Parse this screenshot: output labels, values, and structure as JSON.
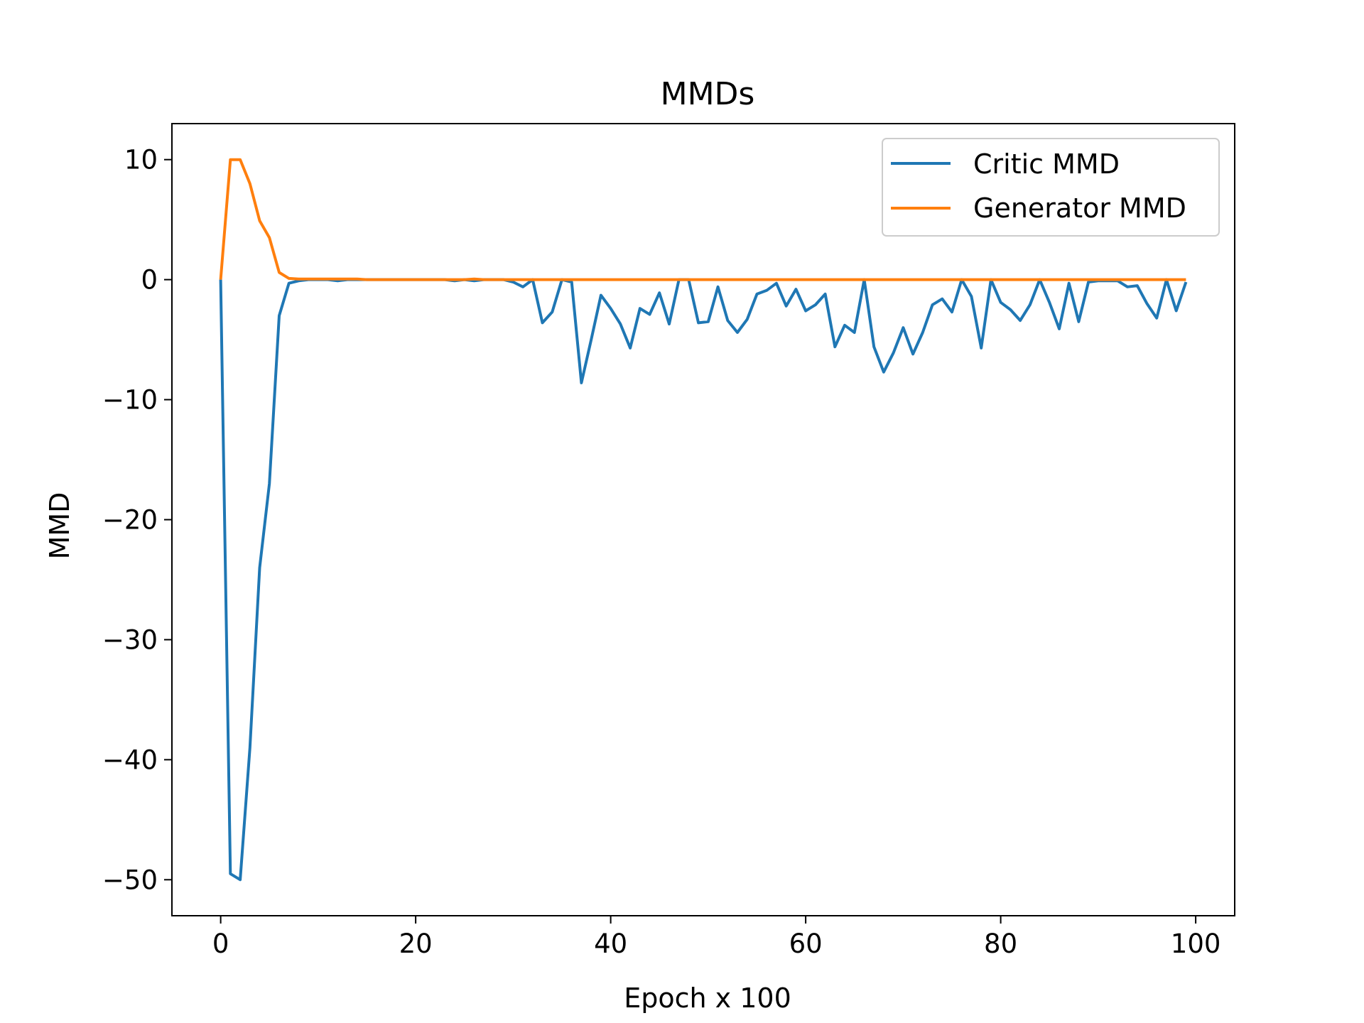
{
  "chart_data": {
    "type": "line",
    "title": "MMDs",
    "xlabel": "Epoch x 100",
    "ylabel": "MMD",
    "xlim": [
      -5,
      104
    ],
    "ylim": [
      -53,
      13
    ],
    "xticks": [
      0,
      20,
      40,
      60,
      80,
      100
    ],
    "xtick_labels": [
      "0",
      "20",
      "40",
      "60",
      "80",
      "100"
    ],
    "yticks": [
      10,
      0,
      -10,
      -20,
      -30,
      -40,
      -50
    ],
    "ytick_labels": [
      "10",
      "0",
      "−10",
      "−20",
      "−30",
      "−40",
      "−50"
    ],
    "legend_position": "upper right",
    "grid": false,
    "series": [
      {
        "name": "Critic MMD",
        "color": "#1f77b4",
        "x": [
          0,
          1,
          2,
          3,
          4,
          5,
          6,
          7,
          8,
          9,
          10,
          11,
          12,
          13,
          14,
          15,
          16,
          17,
          18,
          19,
          20,
          21,
          22,
          23,
          24,
          25,
          26,
          27,
          28,
          29,
          30,
          31,
          32,
          33,
          34,
          35,
          36,
          37,
          38,
          39,
          40,
          41,
          42,
          43,
          44,
          45,
          46,
          47,
          48,
          49,
          50,
          51,
          52,
          53,
          54,
          55,
          56,
          57,
          58,
          59,
          60,
          61,
          62,
          63,
          64,
          65,
          66,
          67,
          68,
          69,
          70,
          71,
          72,
          73,
          74,
          75,
          76,
          77,
          78,
          79,
          80,
          81,
          82,
          83,
          84,
          85,
          86,
          87,
          88,
          89,
          90,
          91,
          92,
          93,
          94,
          95,
          96,
          97,
          98,
          99
        ],
        "y": [
          0,
          -49.5,
          -50,
          -39,
          -24,
          -17,
          -3,
          -0.3,
          -0.1,
          0,
          0,
          0,
          -0.1,
          0,
          0,
          0,
          0,
          0,
          0,
          0,
          0,
          0,
          0,
          0,
          -0.1,
          0,
          -0.1,
          0,
          0,
          0,
          -0.2,
          -0.6,
          0,
          -3.6,
          -2.7,
          0,
          -0.2,
          -8.6,
          -5,
          -1.3,
          -2.4,
          -3.7,
          -5.7,
          -2.4,
          -2.9,
          -1.1,
          -3.7,
          0,
          0,
          -3.6,
          -3.5,
          -0.6,
          -3.4,
          -4.4,
          -3.3,
          -1.2,
          -0.9,
          -0.3,
          -2.2,
          -0.8,
          -2.6,
          -2.1,
          -1.2,
          -5.6,
          -3.8,
          -4.4,
          0,
          -5.6,
          -7.7,
          -6.1,
          -4,
          -6.2,
          -4.4,
          -2.1,
          -1.6,
          -2.7,
          0,
          -1.4,
          -5.7,
          0,
          -1.9,
          -2.5,
          -3.4,
          -2.1,
          0,
          -1.9,
          -4.1,
          -0.3,
          -3.5,
          -0.2,
          -0.1,
          -0.1,
          -0.1,
          -0.6,
          -0.5,
          -2,
          -3.2,
          0,
          -2.6,
          -0.2
        ]
      },
      {
        "name": "Generator MMD",
        "color": "#ff7f0e",
        "x": [
          0,
          1,
          2,
          3,
          4,
          5,
          6,
          7,
          8,
          9,
          10,
          11,
          12,
          13,
          14,
          15,
          16,
          17,
          18,
          19,
          20,
          21,
          22,
          23,
          24,
          25,
          26,
          27,
          28,
          29,
          30,
          31,
          32,
          33,
          34,
          35,
          36,
          37,
          38,
          39,
          40,
          41,
          42,
          43,
          44,
          45,
          46,
          47,
          48,
          49,
          50,
          51,
          52,
          53,
          54,
          55,
          56,
          57,
          58,
          59,
          60,
          61,
          62,
          63,
          64,
          65,
          66,
          67,
          68,
          69,
          70,
          71,
          72,
          73,
          74,
          75,
          76,
          77,
          78,
          79,
          80,
          81,
          82,
          83,
          84,
          85,
          86,
          87,
          88,
          89,
          90,
          91,
          92,
          93,
          94,
          95,
          96,
          97,
          98,
          99
        ],
        "y": [
          0,
          10,
          10,
          8,
          4.9,
          3.5,
          0.6,
          0.1,
          0.05,
          0.05,
          0.05,
          0.05,
          0.05,
          0.05,
          0.05,
          0,
          0,
          0,
          0,
          0,
          0,
          0,
          0,
          0,
          0,
          0,
          0.05,
          0,
          0,
          0,
          0,
          0,
          0,
          0,
          0,
          0,
          0,
          0,
          0,
          0,
          0,
          0,
          0,
          0,
          0,
          0,
          0,
          0,
          0,
          0,
          0,
          0,
          0,
          0,
          0,
          0,
          0,
          0,
          0,
          0,
          0,
          0,
          0,
          0,
          0,
          0,
          0,
          0,
          0,
          0,
          0,
          0,
          0,
          0,
          0,
          0,
          0,
          0,
          0,
          0,
          0,
          0,
          0,
          0,
          0,
          0,
          0,
          0,
          0,
          0,
          0,
          0,
          0,
          0,
          0,
          0,
          0,
          0,
          0,
          0
        ]
      }
    ]
  }
}
